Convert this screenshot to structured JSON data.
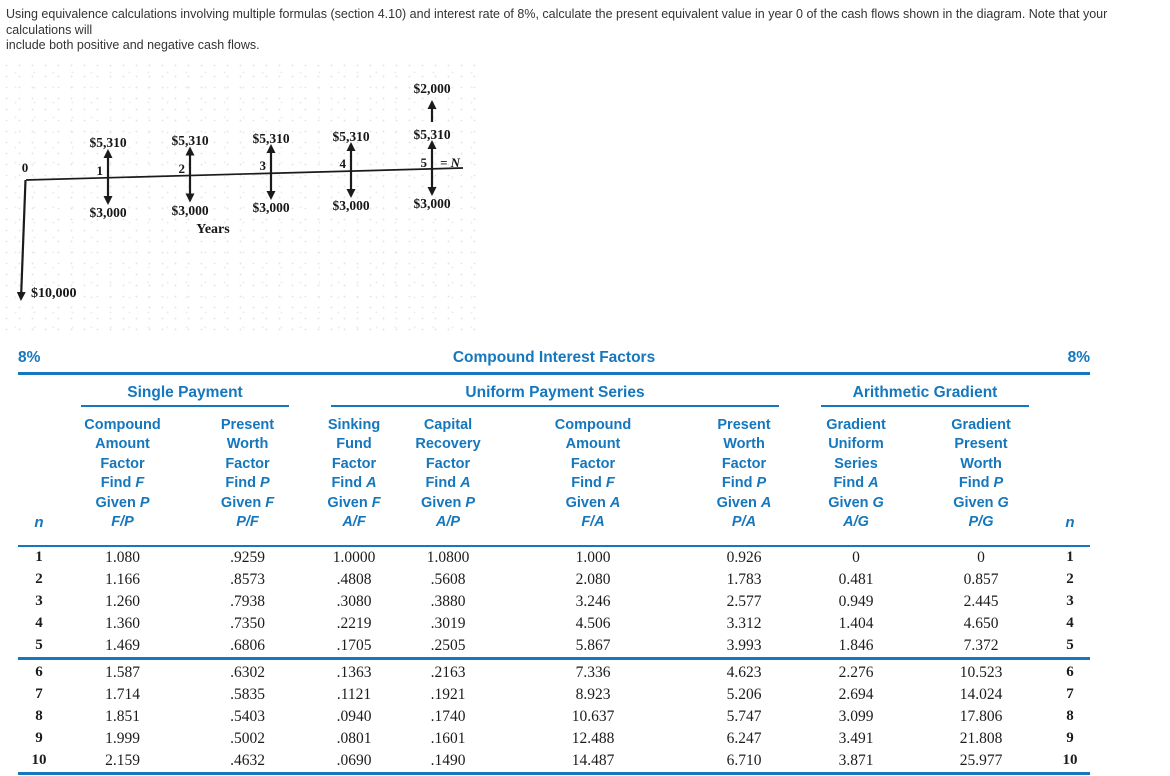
{
  "problem": {
    "line1": "Using equivalence calculations involving multiple formulas (section 4.10) and interest rate of 8%, calculate the present equivalent value in year 0 of the cash flows shown in the diagram. Note that your calculations will",
    "line2": "include both positive and negative cash flows."
  },
  "diagram": {
    "axis_label": "Years",
    "year_labels": [
      "0",
      "1",
      "2",
      "3",
      "4",
      "5"
    ],
    "final_year_suffix": "= N",
    "receipt_label": "$5,310",
    "disbursement_label": "$3,000",
    "extra_receipt_label": "$2,000",
    "initial_disbursement_label": "$10,000"
  },
  "table": {
    "rate_left": "8%",
    "rate_right": "8%",
    "title": "Compound Interest Factors",
    "n_label": "n",
    "groups": [
      {
        "label": "Single Payment"
      },
      {
        "label": "Uniform Payment Series"
      },
      {
        "label": "Arithmetic Gradient"
      }
    ],
    "columns": [
      {
        "title1": "Compound",
        "title2": "Amount",
        "title3": "Factor",
        "find": "Find",
        "find_sym": "F",
        "given": "Given",
        "given_sym": "P",
        "ratio": "F/P"
      },
      {
        "title1": "Present",
        "title2": "Worth",
        "title3": "Factor",
        "find": "Find",
        "find_sym": "P",
        "given": "Given",
        "given_sym": "F",
        "ratio": "P/F"
      },
      {
        "title1": "Sinking",
        "title2": "Fund",
        "title3": "Factor",
        "find": "Find",
        "find_sym": "A",
        "given": "Given",
        "given_sym": "F",
        "ratio": "A/F"
      },
      {
        "title1": "Capital",
        "title2": "Recovery",
        "title3": "Factor",
        "find": "Find",
        "find_sym": "A",
        "given": "Given",
        "given_sym": "P",
        "ratio": "A/P"
      },
      {
        "title1": "Compound",
        "title2": "Amount",
        "title3": "Factor",
        "find": "Find",
        "find_sym": "F",
        "given": "Given",
        "given_sym": "A",
        "ratio": "F/A"
      },
      {
        "title1": "Present",
        "title2": "Worth",
        "title3": "Factor",
        "find": "Find",
        "find_sym": "P",
        "given": "Given",
        "given_sym": "A",
        "ratio": "P/A"
      },
      {
        "title1": "Gradient",
        "title2": "Uniform",
        "title3": "Series",
        "find": "Find",
        "find_sym": "A",
        "given": "Given",
        "given_sym": "G",
        "ratio": "A/G"
      },
      {
        "title1": "Gradient",
        "title2": "Present",
        "title3": "Worth",
        "find": "Find",
        "find_sym": "P",
        "given": "Given",
        "given_sym": "G",
        "ratio": "P/G"
      }
    ],
    "rows": [
      [
        "1",
        "1.080",
        ".9259",
        "1.0000",
        "1.0800",
        "1.000",
        "0.926",
        "0",
        "0",
        "1"
      ],
      [
        "2",
        "1.166",
        ".8573",
        ".4808",
        ".5608",
        "2.080",
        "1.783",
        "0.481",
        "0.857",
        "2"
      ],
      [
        "3",
        "1.260",
        ".7938",
        ".3080",
        ".3880",
        "3.246",
        "2.577",
        "0.949",
        "2.445",
        "3"
      ],
      [
        "4",
        "1.360",
        ".7350",
        ".2219",
        ".3019",
        "4.506",
        "3.312",
        "1.404",
        "4.650",
        "4"
      ],
      [
        "5",
        "1.469",
        ".6806",
        ".1705",
        ".2505",
        "5.867",
        "3.993",
        "1.846",
        "7.372",
        "5"
      ],
      [
        "6",
        "1.587",
        ".6302",
        ".1363",
        ".2163",
        "7.336",
        "4.623",
        "2.276",
        "10.523",
        "6"
      ],
      [
        "7",
        "1.714",
        ".5835",
        ".1121",
        ".1921",
        "8.923",
        "5.206",
        "2.694",
        "14.024",
        "7"
      ],
      [
        "8",
        "1.851",
        ".5403",
        ".0940",
        ".1740",
        "10.637",
        "5.747",
        "3.099",
        "17.806",
        "8"
      ],
      [
        "9",
        "1.999",
        ".5002",
        ".0801",
        ".1601",
        "12.488",
        "6.247",
        "3.491",
        "21.808",
        "9"
      ],
      [
        "10",
        "2.159",
        ".4632",
        ".0690",
        ".1490",
        "14.487",
        "6.710",
        "3.871",
        "25.977",
        "10"
      ]
    ]
  },
  "colors": {
    "accent_blue": "#1577bd",
    "diagram_ink": "#1b1b1b"
  }
}
